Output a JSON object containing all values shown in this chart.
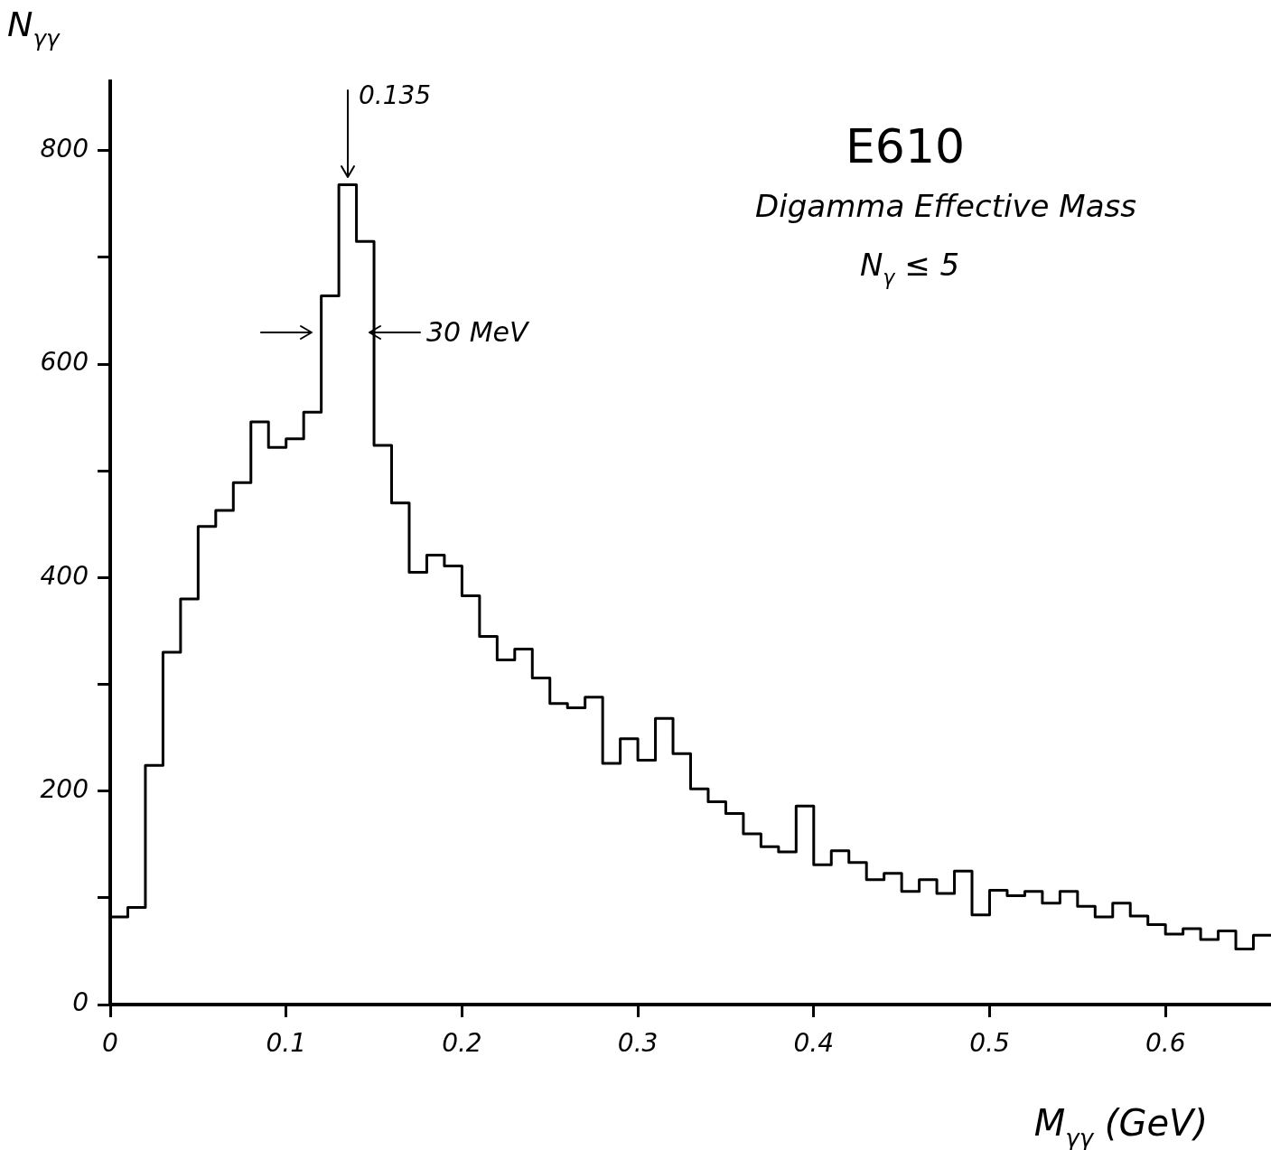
{
  "chart_data": {
    "type": "histogram",
    "title": "E610",
    "subtitle": "Digamma Effective Mass",
    "xlabel": "M$_{γγ}$ (GeV)",
    "ylabel": "N$_{γγ}$",
    "annotations": [
      "0.135",
      "30 MeV",
      "N$_{γ}$ ≤ 5"
    ],
    "bins": [
      0,
      0.01,
      0.02,
      0.03,
      0.04,
      0.05,
      0.06,
      0.07,
      0.08,
      0.09,
      0.1,
      0.11,
      0.12,
      0.13,
      0.14,
      0.15,
      0.16,
      0.17,
      0.18,
      0.19,
      0.2,
      0.21,
      0.22,
      0.23,
      0.24,
      0.25,
      0.26,
      0.27,
      0.28,
      0.29,
      0.3,
      0.31,
      0.32,
      0.33,
      0.34,
      0.35,
      0.36,
      0.37,
      0.38,
      0.39,
      0.4,
      0.41,
      0.42,
      0.43,
      0.44,
      0.45,
      0.46,
      0.47,
      0.48,
      0.49,
      0.5,
      0.51,
      0.52,
      0.53,
      0.54,
      0.55,
      0.56,
      0.57,
      0.58,
      0.59,
      0.6,
      0.61,
      0.62,
      0.63,
      0.64,
      0.65,
      0.66
    ],
    "values": [
      82,
      91,
      224,
      330,
      380,
      448,
      463,
      489,
      546,
      522,
      530,
      555,
      664,
      768,
      715,
      524,
      470,
      405,
      421,
      411,
      383,
      345,
      323,
      333,
      306,
      282,
      278,
      288,
      226,
      249,
      229,
      268,
      235,
      202,
      190,
      179,
      160,
      148,
      143,
      186,
      131,
      144,
      133,
      117,
      123,
      106,
      117,
      104,
      125,
      84,
      107,
      102,
      106,
      95,
      106,
      92,
      82,
      95,
      83,
      75,
      66,
      71,
      61,
      69,
      52,
      65
    ],
    "color": "#000000",
    "xlim": [
      0,
      0.66
    ],
    "ylim": [
      0,
      865
    ],
    "xticks": [
      0,
      0.1,
      0.2,
      0.3,
      0.4,
      0.5,
      0.6
    ],
    "yticks": [
      0,
      {
        "value": 100,
        "label": null
      },
      200,
      {
        "value": 300,
        "label": null
      },
      400,
      {
        "value": 500,
        "label": null
      },
      600,
      {
        "value": 700,
        "label": null
      },
      800
    ]
  }
}
